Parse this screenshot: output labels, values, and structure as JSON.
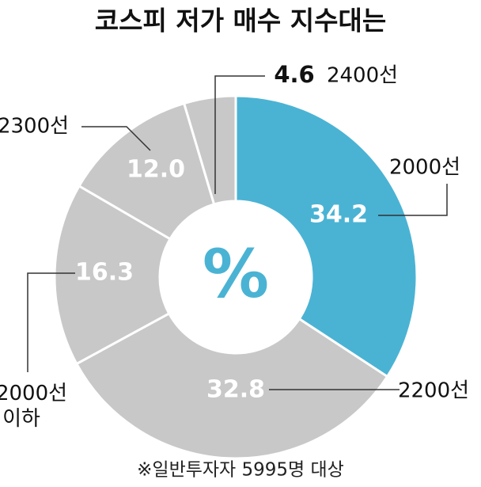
{
  "chart_data": {
    "type": "donut",
    "title": "코스피 저가 매수 지수대는",
    "center_label": "%",
    "categories": [
      "2000선",
      "2200선",
      "2000선 이하",
      "2300선",
      "2400선"
    ],
    "values": [
      34.2,
      32.8,
      16.3,
      12.0,
      4.6
    ],
    "value_labels": [
      "34.2",
      "32.8",
      "16.3",
      "12.0",
      "4.6"
    ],
    "colors": [
      "#4ab3d4",
      "#c8c8c8",
      "#c8c8c8",
      "#c8c8c8",
      "#c8c8c8"
    ],
    "note": "※일반투자자 5995명 대상"
  }
}
